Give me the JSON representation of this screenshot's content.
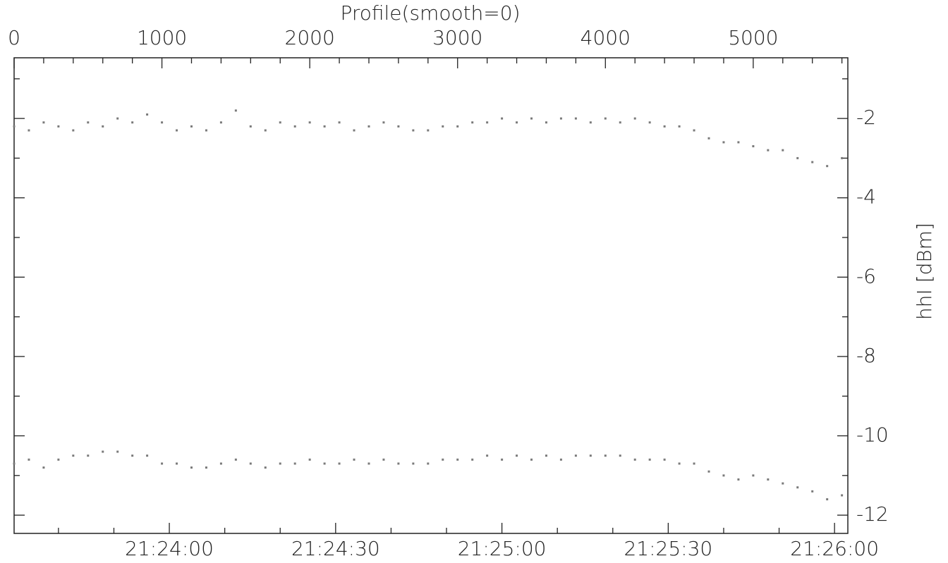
{
  "chart_data": {
    "type": "scatter",
    "title": "Profile(smooth=0)",
    "y_label": "hhI [dBm]",
    "x": [
      0,
      100,
      200,
      300,
      400,
      500,
      600,
      700,
      800,
      900,
      1000,
      1100,
      1200,
      1300,
      1400,
      1500,
      1600,
      1700,
      1800,
      1900,
      2000,
      2100,
      2200,
      2300,
      2400,
      2500,
      2600,
      2700,
      2800,
      2900,
      3000,
      3100,
      3200,
      3300,
      3400,
      3500,
      3600,
      3700,
      3800,
      3900,
      4000,
      4100,
      4200,
      4300,
      4400,
      4500,
      4600,
      4700,
      4800,
      4900,
      5000,
      5100,
      5200,
      5300,
      5400,
      5500,
      5600
    ],
    "series": [
      {
        "color": "#7a7a7a",
        "values": [
          -2.2,
          -2.3,
          -2.1,
          -2.2,
          -2.3,
          -2.1,
          -2.2,
          -2.0,
          -2.1,
          -1.9,
          -2.1,
          -2.3,
          -2.2,
          -2.3,
          -2.1,
          -1.8,
          -2.2,
          -2.3,
          -2.1,
          -2.2,
          -2.1,
          -2.2,
          -2.1,
          -2.3,
          -2.2,
          -2.1,
          -2.2,
          -2.3,
          -2.3,
          -2.2,
          -2.2,
          -2.1,
          -2.1,
          -2.0,
          -2.1,
          -2.0,
          -2.1,
          -2.0,
          -2.0,
          -2.1,
          -2.0,
          -2.1,
          -2.0,
          -2.1,
          -2.2,
          -2.2,
          -2.3,
          -2.5,
          -2.6,
          -2.6,
          -2.7,
          -2.8,
          -2.8,
          -3.0,
          -3.1,
          -3.2,
          -3.0
        ]
      },
      {
        "color": "#7a7a7a",
        "values": [
          -10.7,
          -10.6,
          -10.8,
          -10.6,
          -10.5,
          -10.5,
          -10.4,
          -10.4,
          -10.5,
          -10.5,
          -10.7,
          -10.7,
          -10.8,
          -10.8,
          -10.7,
          -10.6,
          -10.7,
          -10.8,
          -10.7,
          -10.7,
          -10.6,
          -10.7,
          -10.7,
          -10.6,
          -10.7,
          -10.6,
          -10.7,
          -10.7,
          -10.7,
          -10.6,
          -10.6,
          -10.6,
          -10.5,
          -10.6,
          -10.5,
          -10.6,
          -10.5,
          -10.6,
          -10.5,
          -10.5,
          -10.5,
          -10.5,
          -10.6,
          -10.6,
          -10.6,
          -10.7,
          -10.7,
          -10.9,
          -11.0,
          -11.1,
          -11.0,
          -11.1,
          -11.2,
          -11.3,
          -11.4,
          -11.6,
          -11.5
        ]
      }
    ],
    "xlim": [
      0,
      5640
    ],
    "xticks": [
      0,
      1000,
      2000,
      3000,
      4000,
      5000
    ],
    "minor_xticks": [
      200,
      400,
      600,
      800,
      1200,
      1400,
      1600,
      1800,
      2200,
      2400,
      2600,
      2800,
      3200,
      3400,
      3600,
      3800,
      4200,
      4400,
      4600,
      4800,
      5200,
      5400,
      5600
    ],
    "time_lim": [
      77012,
      77162.4
    ],
    "time_ticks": [
      {
        "value": 77040,
        "label": "21:24:00"
      },
      {
        "value": 77070,
        "label": "21:24:30"
      },
      {
        "value": 77100,
        "label": "21:25:00"
      },
      {
        "value": 77130,
        "label": "21:25:30"
      },
      {
        "value": 77160,
        "label": "21:26:00"
      }
    ],
    "minor_time_ticks": [
      77020,
      77030,
      77050,
      77060,
      77080,
      77090,
      77110,
      77120,
      77140,
      77150
    ],
    "ylim": [
      -12.46,
      -0.47
    ],
    "yticks": [
      -2,
      -4,
      -6,
      -8,
      -10,
      -12
    ],
    "minor_yticks": [
      -1,
      -3,
      -5,
      -7,
      -9,
      -11
    ]
  }
}
